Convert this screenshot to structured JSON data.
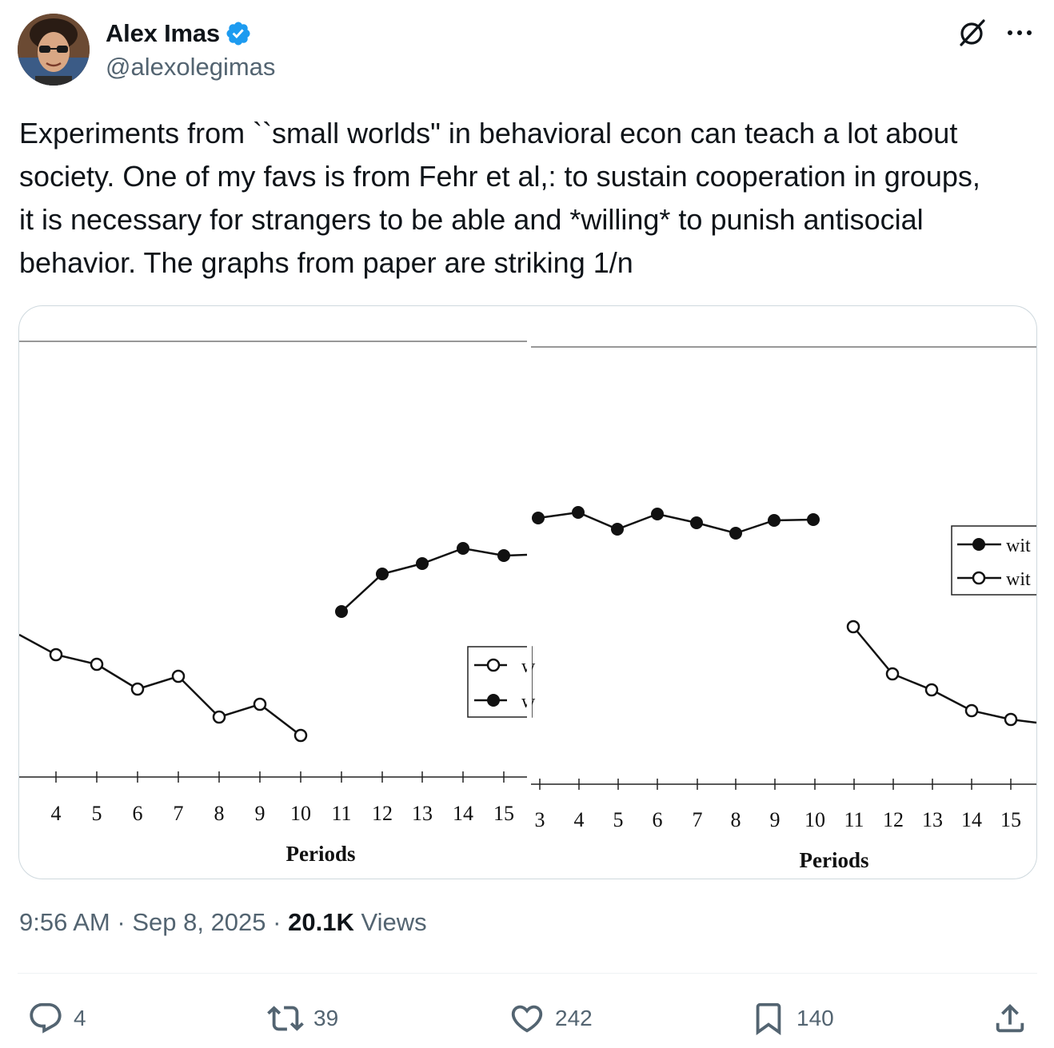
{
  "author": {
    "display_name": "Alex Imas",
    "handle": "@alexolegimas",
    "verified": true,
    "verified_color": "#1d9bf0"
  },
  "header_icons": {
    "grok": "grok-icon",
    "more": "more-icon"
  },
  "tweet": {
    "text": "Experiments from ``small worlds\" in behavioral econ can teach a lot about\nsociety. One of my favs is from Fehr et al,: to sustain cooperation in groups,\nit is necessary for strangers to be able and *willing* to punish antisocial\nbehavior. The graphs from paper are striking 1/n"
  },
  "media": {
    "left_panel": {
      "xlabel": "Periods",
      "tick_labels": [
        "4",
        "5",
        "6",
        "7",
        "8",
        "9",
        "10",
        "11",
        "12",
        "13",
        "14",
        "15"
      ],
      "legend_entries": [
        "w",
        "w"
      ]
    },
    "right_panel": {
      "xlabel": "Periods",
      "tick_labels": [
        "3",
        "4",
        "5",
        "6",
        "7",
        "8",
        "9",
        "10",
        "11",
        "12",
        "13",
        "14",
        "15"
      ],
      "legend_entries": [
        "wit",
        "wit"
      ]
    }
  },
  "meta": {
    "time": "9:56 AM",
    "separator": "·",
    "date": "Sep 8, 2025",
    "views_count": "20.1K",
    "views_label": "Views"
  },
  "actions": {
    "replies": {
      "icon": "reply-icon",
      "count": "4"
    },
    "reposts": {
      "icon": "repost-icon",
      "count": "39"
    },
    "likes": {
      "icon": "heart-icon",
      "count": "242"
    },
    "bookmarks": {
      "icon": "bookmark-icon",
      "count": "140"
    },
    "share": {
      "icon": "share-icon"
    }
  }
}
